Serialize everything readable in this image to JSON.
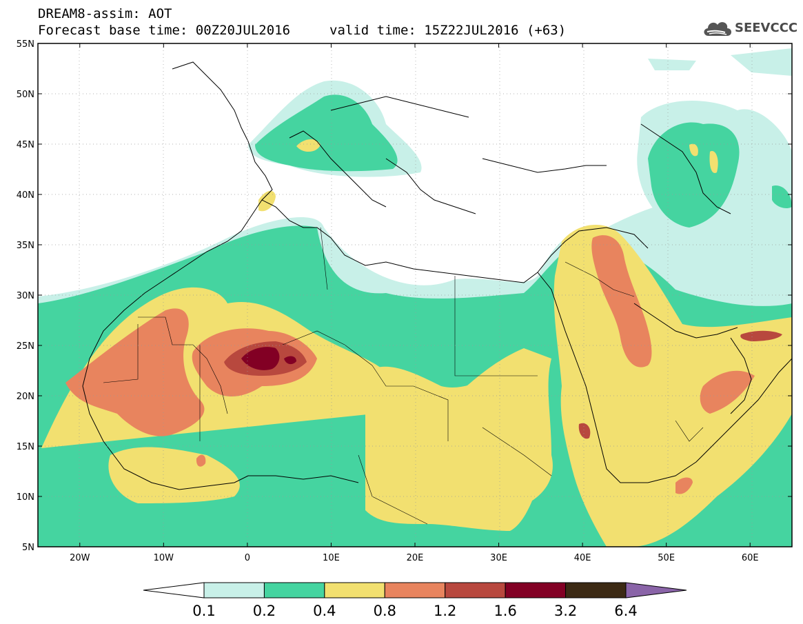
{
  "header": {
    "title": "DREAM8-assim: AOT",
    "base_time": "Forecast base time: 00Z20JUL2016",
    "valid_time": "valid time: 15Z22JUL2016 (+63)"
  },
  "logo": {
    "text": "SEEVCCC",
    "icon": "cloud-icon"
  },
  "axes": {
    "lon_labels": [
      "20W",
      "10W",
      "0",
      "10E",
      "20E",
      "30E",
      "40E",
      "50E",
      "60E"
    ],
    "lat_labels": [
      "55N",
      "50N",
      "45N",
      "40N",
      "35N",
      "30N",
      "25N",
      "20N",
      "15N",
      "10N",
      "5N"
    ],
    "lon_range": [
      -25,
      65
    ],
    "lat_range": [
      5,
      55
    ],
    "grid": true
  },
  "colorbar": {
    "labels": [
      "0.1",
      "0.2",
      "0.4",
      "0.8",
      "1.2",
      "1.6",
      "3.2",
      "6.4"
    ],
    "colors": [
      "#ffffff",
      "#c8f0e8",
      "#45d4a0",
      "#f2e070",
      "#e8845e",
      "#b8483e",
      "#820024",
      "#3c2a14",
      "#8a64a8"
    ]
  },
  "field_levels": {
    "low": "#c8f0e8",
    "mid": "#45d4a0",
    "high": "#f2e070",
    "vhigh": "#e8845e",
    "xhigh": "#b8483e",
    "extreme": "#820024"
  }
}
